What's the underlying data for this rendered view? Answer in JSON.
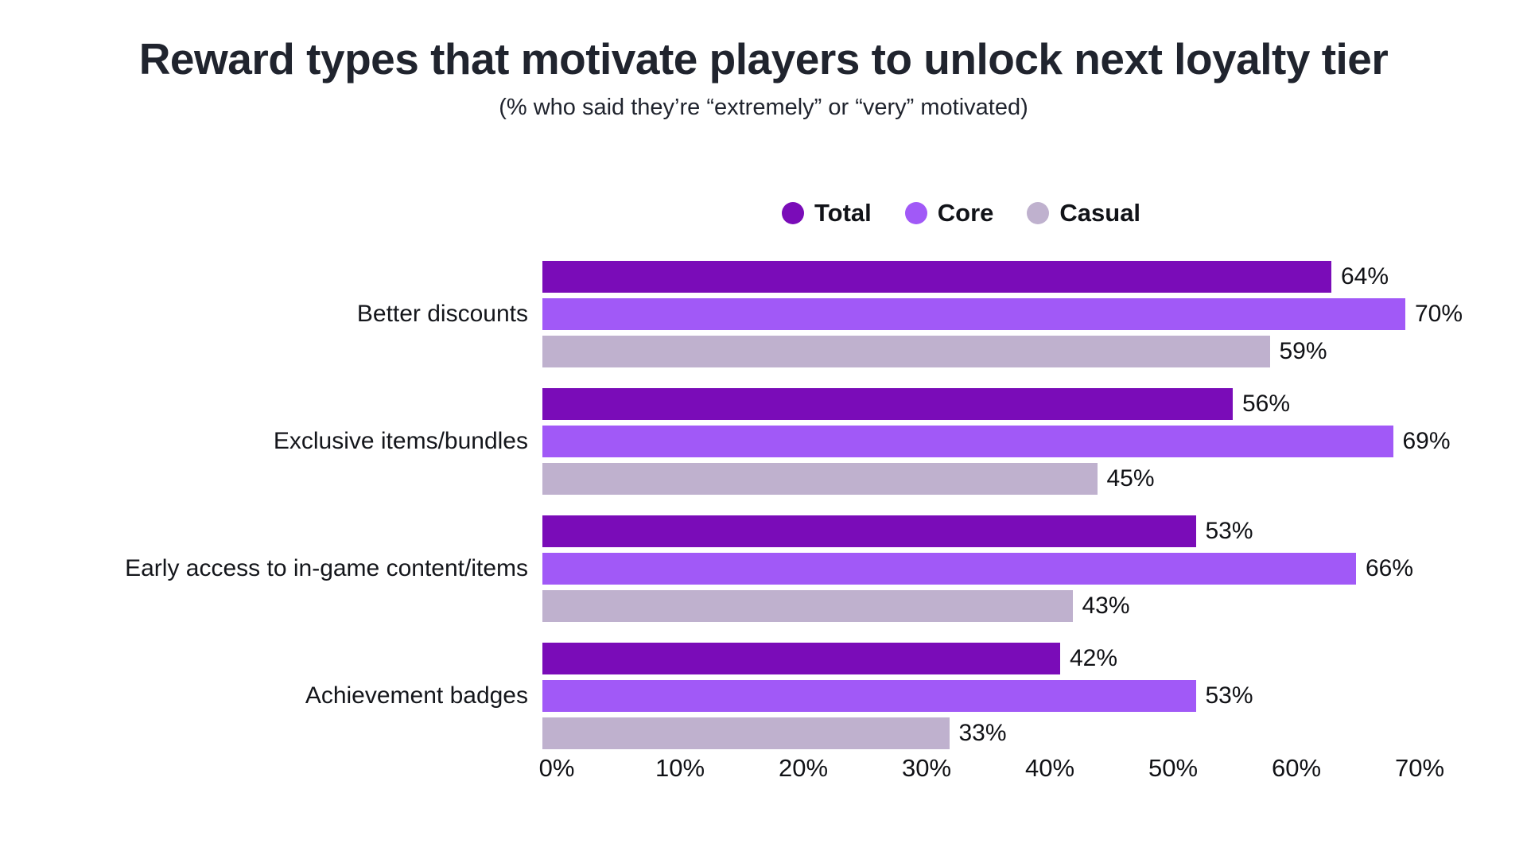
{
  "chart_data": {
    "type": "bar",
    "orientation": "horizontal",
    "title": "Reward types that motivate players to unlock next loyalty tier",
    "subtitle": "(% who said they’re “extremely” or “very” motivated)",
    "categories": [
      "Better discounts",
      "Exclusive items/bundles",
      "Early access to in-game content/items",
      "Achievement badges"
    ],
    "series": [
      {
        "name": "Total",
        "color": "#7a0cb8",
        "values": [
          64,
          56,
          53,
          42
        ]
      },
      {
        "name": "Core",
        "color": "#a159f7",
        "values": [
          70,
          69,
          66,
          53
        ]
      },
      {
        "name": "Casual",
        "color": "#bfb1ce",
        "values": [
          59,
          45,
          43,
          33
        ]
      }
    ],
    "value_suffix": "%",
    "xlim": [
      0,
      70
    ],
    "xticks": [
      "0%",
      "10%",
      "20%",
      "30%",
      "40%",
      "50%",
      "60%",
      "70%"
    ],
    "legend_position": "top",
    "grid": false,
    "background": "#ffffff"
  }
}
